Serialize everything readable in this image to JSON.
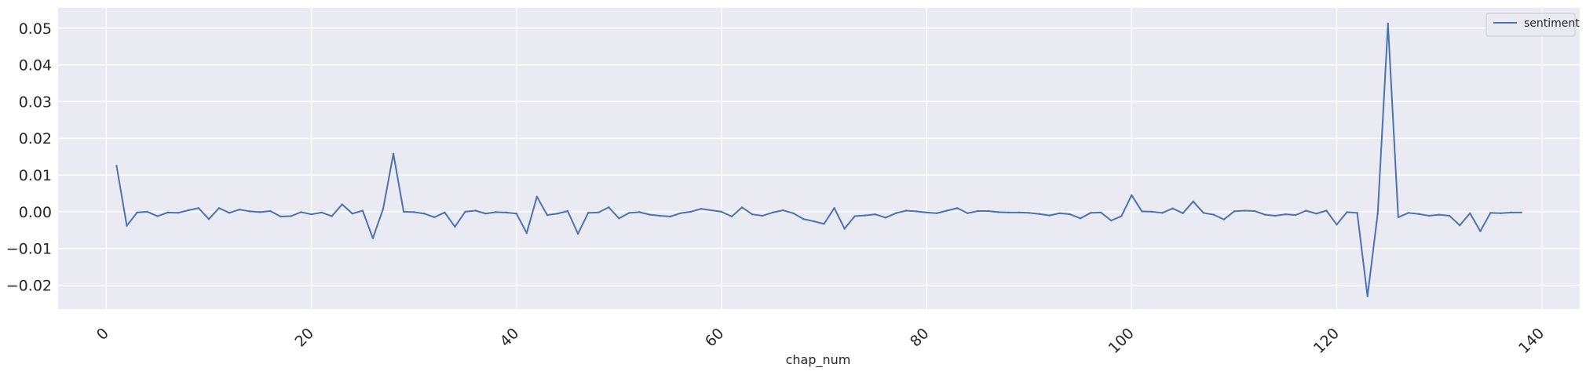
{
  "chart_data": {
    "type": "line",
    "title": "",
    "xlabel": "chap_num",
    "ylabel": "",
    "xlim": [
      -4.7,
      143.7
    ],
    "ylim": [
      -0.0265,
      0.0555
    ],
    "xticks": [
      0,
      20,
      40,
      60,
      80,
      100,
      120,
      140
    ],
    "xtick_labels": [
      "0",
      "20",
      "40",
      "60",
      "80",
      "100",
      "120",
      "140"
    ],
    "yticks": [
      -0.02,
      -0.01,
      0.0,
      0.01,
      0.02,
      0.03,
      0.04,
      0.05
    ],
    "ytick_labels": [
      "−0.02",
      "−0.01",
      "0.00",
      "0.01",
      "0.02",
      "0.03",
      "0.04",
      "0.05"
    ],
    "grid": true,
    "background": "#eaeaf2",
    "grid_color": "#ffffff",
    "legend": {
      "placement": "top-right",
      "entries": [
        "sentiment"
      ]
    },
    "series": [
      {
        "name": "sentiment",
        "color": "#4c72b0",
        "x": [
          1,
          2,
          3,
          4,
          5,
          6,
          7,
          8,
          9,
          10,
          11,
          12,
          13,
          14,
          15,
          16,
          17,
          18,
          19,
          20,
          21,
          22,
          23,
          24,
          25,
          26,
          27,
          28,
          29,
          30,
          31,
          32,
          33,
          34,
          35,
          36,
          37,
          38,
          39,
          40,
          41,
          42,
          43,
          44,
          45,
          46,
          47,
          48,
          49,
          50,
          51,
          52,
          53,
          54,
          55,
          56,
          57,
          58,
          59,
          60,
          61,
          62,
          63,
          64,
          65,
          66,
          67,
          68,
          69,
          70,
          71,
          72,
          73,
          74,
          75,
          76,
          77,
          78,
          79,
          80,
          81,
          82,
          83,
          84,
          85,
          86,
          87,
          88,
          89,
          90,
          91,
          92,
          93,
          94,
          95,
          96,
          97,
          98,
          99,
          100,
          101,
          102,
          103,
          104,
          105,
          106,
          107,
          108,
          109,
          110,
          111,
          112,
          113,
          114,
          115,
          116,
          117,
          118,
          119,
          120,
          121,
          122,
          123,
          124,
          125,
          126,
          127,
          128,
          129,
          130,
          131,
          132,
          133,
          134,
          135,
          136,
          137,
          138
        ],
        "values": [
          0.0125,
          -0.0038,
          -0.0002,
          0.0,
          -0.0012,
          -0.0002,
          -0.0003,
          0.0004,
          0.001,
          -0.002,
          0.001,
          -0.0003,
          0.0006,
          0.0001,
          -0.0001,
          0.0002,
          -0.0013,
          -0.0012,
          -0.0001,
          -0.0007,
          -0.0002,
          -0.0012,
          0.002,
          -0.0005,
          0.0003,
          -0.0072,
          0.0008,
          0.0158,
          0.0,
          -0.0001,
          -0.0005,
          -0.0015,
          -0.0002,
          -0.0041,
          0.0,
          0.0003,
          -0.0005,
          -0.0001,
          -0.0002,
          -0.0005,
          -0.0058,
          0.0041,
          -0.0009,
          -0.0005,
          0.0002,
          -0.006,
          -0.0003,
          -0.0002,
          0.0012,
          -0.0018,
          -0.0003,
          -0.0001,
          -0.0008,
          -0.0011,
          -0.0013,
          -0.0004,
          0.0,
          0.0008,
          0.0004,
          0.0,
          -0.0013,
          0.0012,
          -0.0007,
          -0.0011,
          -0.0002,
          0.0004,
          -0.0004,
          -0.002,
          -0.0026,
          -0.0033,
          0.001,
          -0.0046,
          -0.0012,
          -0.001,
          -0.0007,
          -0.0016,
          -0.0004,
          0.0003,
          0.0001,
          -0.0002,
          -0.0004,
          0.0003,
          0.001,
          -0.0004,
          0.0002,
          0.0002,
          -0.0001,
          -0.0002,
          -0.0002,
          -0.0003,
          -0.0006,
          -0.001,
          -0.0004,
          -0.0007,
          -0.0018,
          -0.0003,
          -0.0002,
          -0.0024,
          -0.0012,
          0.0045,
          0.0001,
          0.0,
          -0.0003,
          0.0009,
          -0.0004,
          0.0028,
          -0.0003,
          -0.0008,
          -0.0021,
          0.0001,
          0.0003,
          0.0002,
          -0.0008,
          -0.0011,
          -0.0007,
          -0.0009,
          0.0003,
          -0.0005,
          0.0003,
          -0.0035,
          -0.0001,
          -0.0003,
          -0.023,
          -0.0005,
          0.0512,
          -0.0015,
          -0.0003,
          -0.0006,
          -0.0011,
          -0.0008,
          -0.0011,
          -0.0037,
          -0.0004,
          -0.0053,
          -0.0003,
          -0.0004,
          -0.0002,
          -0.0002
        ]
      }
    ]
  }
}
